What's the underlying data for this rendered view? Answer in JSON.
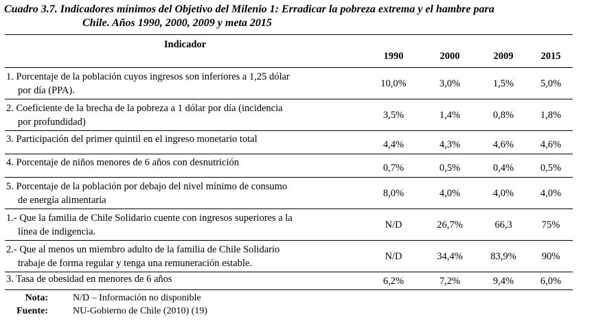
{
  "caption": {
    "line1": "Cuadro 3.7. Indicadores mínimos del Objetivo del Milenio 1: Erradicar la pobreza extrema y el hambre para",
    "line2": "Chile. Años 1990, 2000, 2009 y meta 2015"
  },
  "table": {
    "headers": {
      "indicator": "Indicador",
      "years": [
        "1990",
        "2000",
        "2009",
        "2015"
      ]
    },
    "rows": [
      {
        "label_line1": "1. Porcentaje de la población cuyos ingresos son inferiores a 1,25 dólar",
        "label_line2": "por día (PPA).",
        "values": [
          "10,0%",
          "3,0%",
          "1,5%",
          "5,0%"
        ]
      },
      {
        "label_line1": "2. Coeficiente de la brecha de la pobreza a 1 dólar por día (incidencia",
        "label_line2": "por profundidad)",
        "values": [
          "3,5%",
          "1,4%",
          "0,8%",
          "1,8%"
        ]
      },
      {
        "label_line1": "3. Participación del primer quintil en el ingreso monetario total",
        "label_line2": "",
        "values": [
          "4,4%",
          "4,3%",
          "4,6%",
          "4,6%"
        ]
      },
      {
        "label_line1": "4. Porcentaje de niños menores de 6 años con desnutrición",
        "label_line2": "",
        "values": [
          "0,7%",
          "0,5%",
          "0,4%",
          "0,5%"
        ]
      },
      {
        "label_line1": "5. Porcentaje de la población por debajo del nivel mínimo de consumo",
        "label_line2": "de energía alimentaria",
        "values": [
          "8,0%",
          "4,0%",
          "4,0%",
          "4,0%"
        ]
      },
      {
        "label_line1": "1.- Que la familia de Chile Solidario cuente con ingresos superiores a la",
        "label_line2": "línea de indigencia.",
        "values": [
          "N/D",
          "26,7%",
          "66,3",
          "75%"
        ]
      },
      {
        "label_line1": "2.- Que al menos un miembro adulto de la familia de Chile Solidario",
        "label_line2": "trabaje de forma regular y tenga una remuneración estable.",
        "values": [
          "N/D",
          "34,4%",
          "83,9%",
          "90%"
        ]
      },
      {
        "label_line1": "3. Tasa de obesidad en menores de 6 años",
        "label_line2": "",
        "values": [
          "6,2%",
          "7,2%",
          "9,4%",
          "6,0%"
        ]
      }
    ]
  },
  "notes": {
    "nota_label": "Nota:",
    "nota_text": "N/D – Información no disponible",
    "fuente_label": "Fuente:",
    "fuente_text": "NU-Gobierno de Chile (2010) (19)"
  }
}
